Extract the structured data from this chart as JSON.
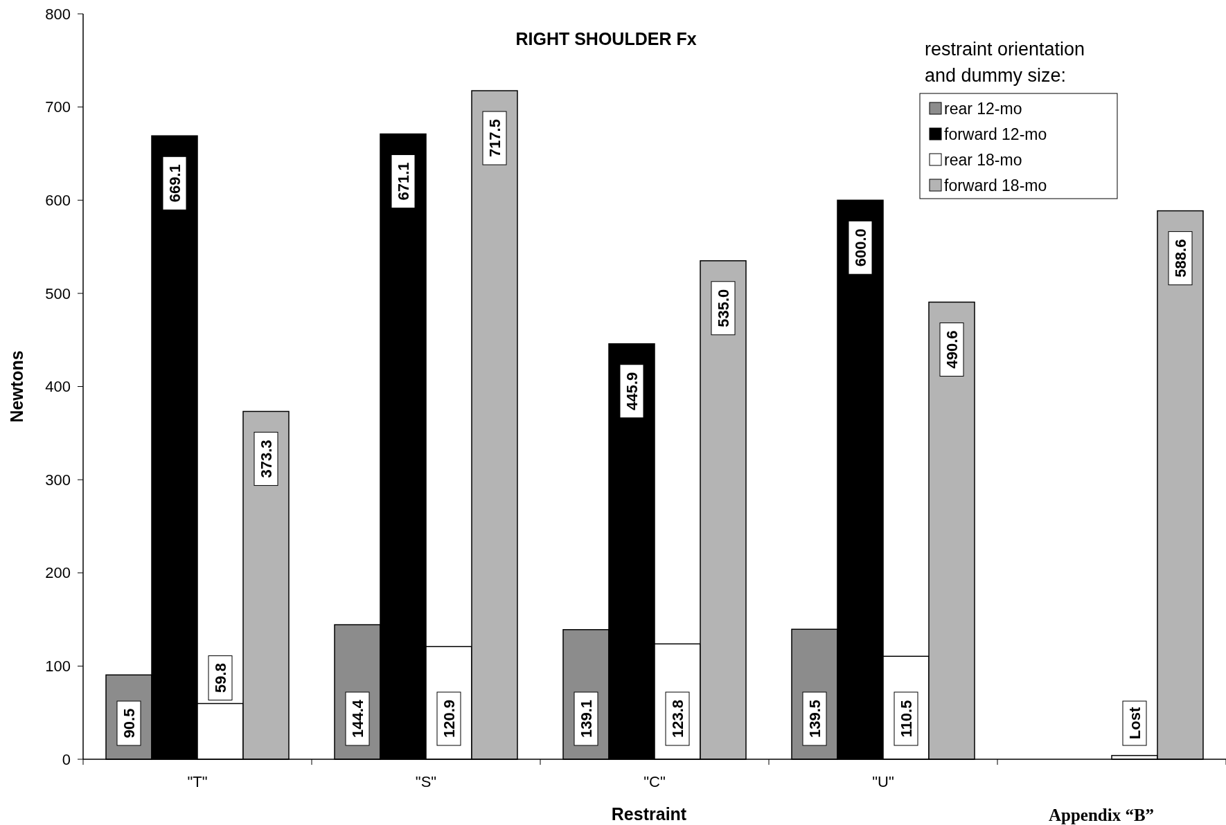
{
  "chart_data": {
    "type": "bar",
    "title": "RIGHT SHOULDER Fx",
    "xlabel": "Restraint",
    "ylabel": "Newtons",
    "legend_title": "restraint orientation and dummy size:",
    "legend": "top right",
    "grid": false,
    "categories": [
      "\"T\"",
      "\"S\"",
      "\"C\"",
      "\"U\"",
      null
    ],
    "series": [
      {
        "name": "rear 12-mo",
        "color": "#8c8c8c",
        "values": [
          90.5,
          144.4,
          139.1,
          139.5,
          null
        ],
        "value_labels": [
          "90.5",
          "144.4",
          "139.1",
          "139.5",
          null
        ]
      },
      {
        "name": "forward 12-mo",
        "color": "#000000",
        "values": [
          669.1,
          671.1,
          445.9,
          600.0,
          null
        ],
        "value_labels": [
          "669.1",
          "671.1",
          "445.9",
          "600.0",
          null
        ]
      },
      {
        "name": "rear 18-mo",
        "color": "#ffffff",
        "values": [
          59.8,
          120.9,
          123.8,
          110.5,
          4
        ],
        "value_labels": [
          "59.8",
          "120.9",
          "123.8",
          "110.5",
          "Lost"
        ]
      },
      {
        "name": "forward 18-mo",
        "color": "#b4b4b4",
        "values": [
          373.3,
          717.5,
          535.0,
          490.6,
          588.6
        ],
        "value_labels": [
          "373.3",
          "717.5",
          "535.0",
          "490.6",
          "588.6"
        ]
      }
    ],
    "ylim": [
      0,
      800
    ],
    "yticks": [
      0,
      100,
      200,
      300,
      400,
      500,
      600,
      700,
      800
    ],
    "annotations": [
      "Appendix “B”"
    ]
  }
}
